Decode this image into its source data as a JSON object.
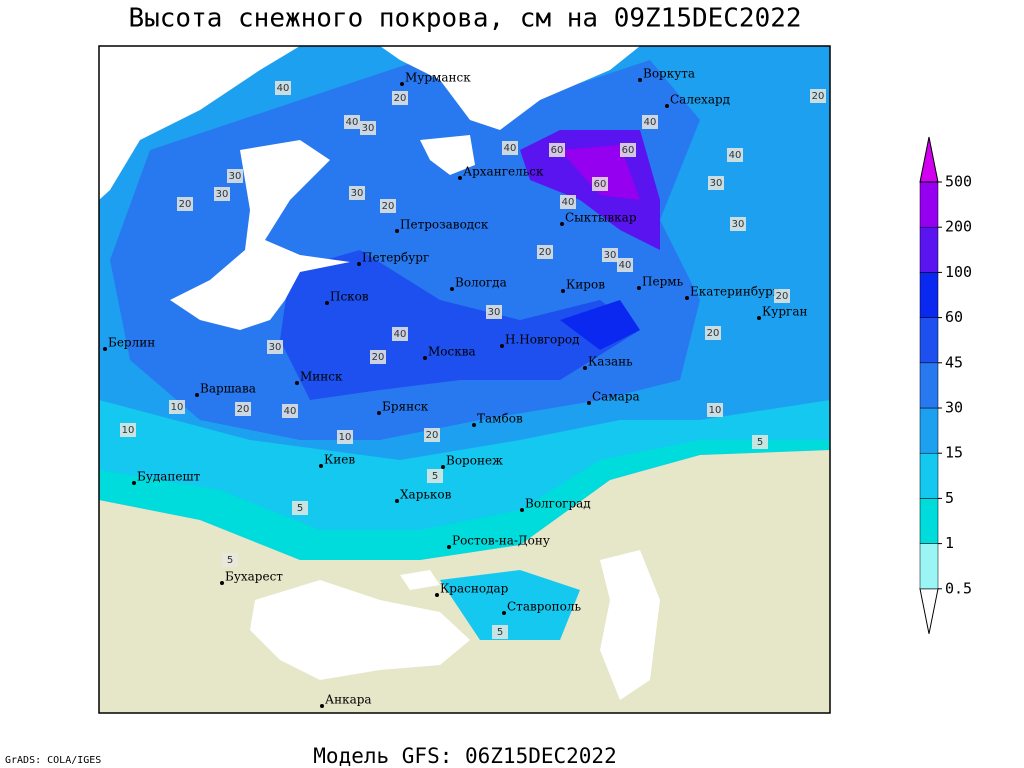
{
  "title": "Высота снежного покрова, см на 09Z15DEC2022",
  "footer": "Модель GFS: 06Z15DEC2022",
  "credit": "GrADS: COLA/IGES",
  "cities": [
    "Мурманск",
    "Воркута",
    "Салехард",
    "Архангельск",
    "Сыктывкар",
    "Петрозаводск",
    "Петербург",
    "Вологда",
    "Киров",
    "Пермь",
    "Екатеринбург",
    "Курган",
    "Псков",
    "Берлин",
    "Н.Новгород",
    "Казань",
    "Москва",
    "Минск",
    "Варшава",
    "Самара",
    "Брянск",
    "Тамбов",
    "Киев",
    "Воронеж",
    "Будапешт",
    "Харьков",
    "Волгоград",
    "Ростов-на-Дону",
    "Бухарест",
    "Краснодар",
    "Ставрополь",
    "Анкара"
  ],
  "contour_labels": [
    20,
    40,
    30,
    40,
    30,
    20,
    30,
    30,
    20,
    60,
    60,
    60,
    40,
    40,
    40,
    40,
    30,
    30,
    20,
    40,
    30,
    20,
    10,
    30,
    20,
    10,
    30,
    20,
    5,
    5,
    5,
    5,
    10,
    20,
    20,
    40,
    40,
    20,
    10,
    5
  ],
  "legend": {
    "values": [
      0.5,
      1,
      5,
      15,
      30,
      45,
      60,
      100,
      200,
      500
    ],
    "colors": [
      "#ffffff",
      "#9cf5f5",
      "#00dcdc",
      "#14c8f0",
      "#1ea0f0",
      "#2878f0",
      "#1e50f0",
      "#0a28f0",
      "#5a14f0",
      "#9600f0",
      "#d200f0"
    ]
  }
}
